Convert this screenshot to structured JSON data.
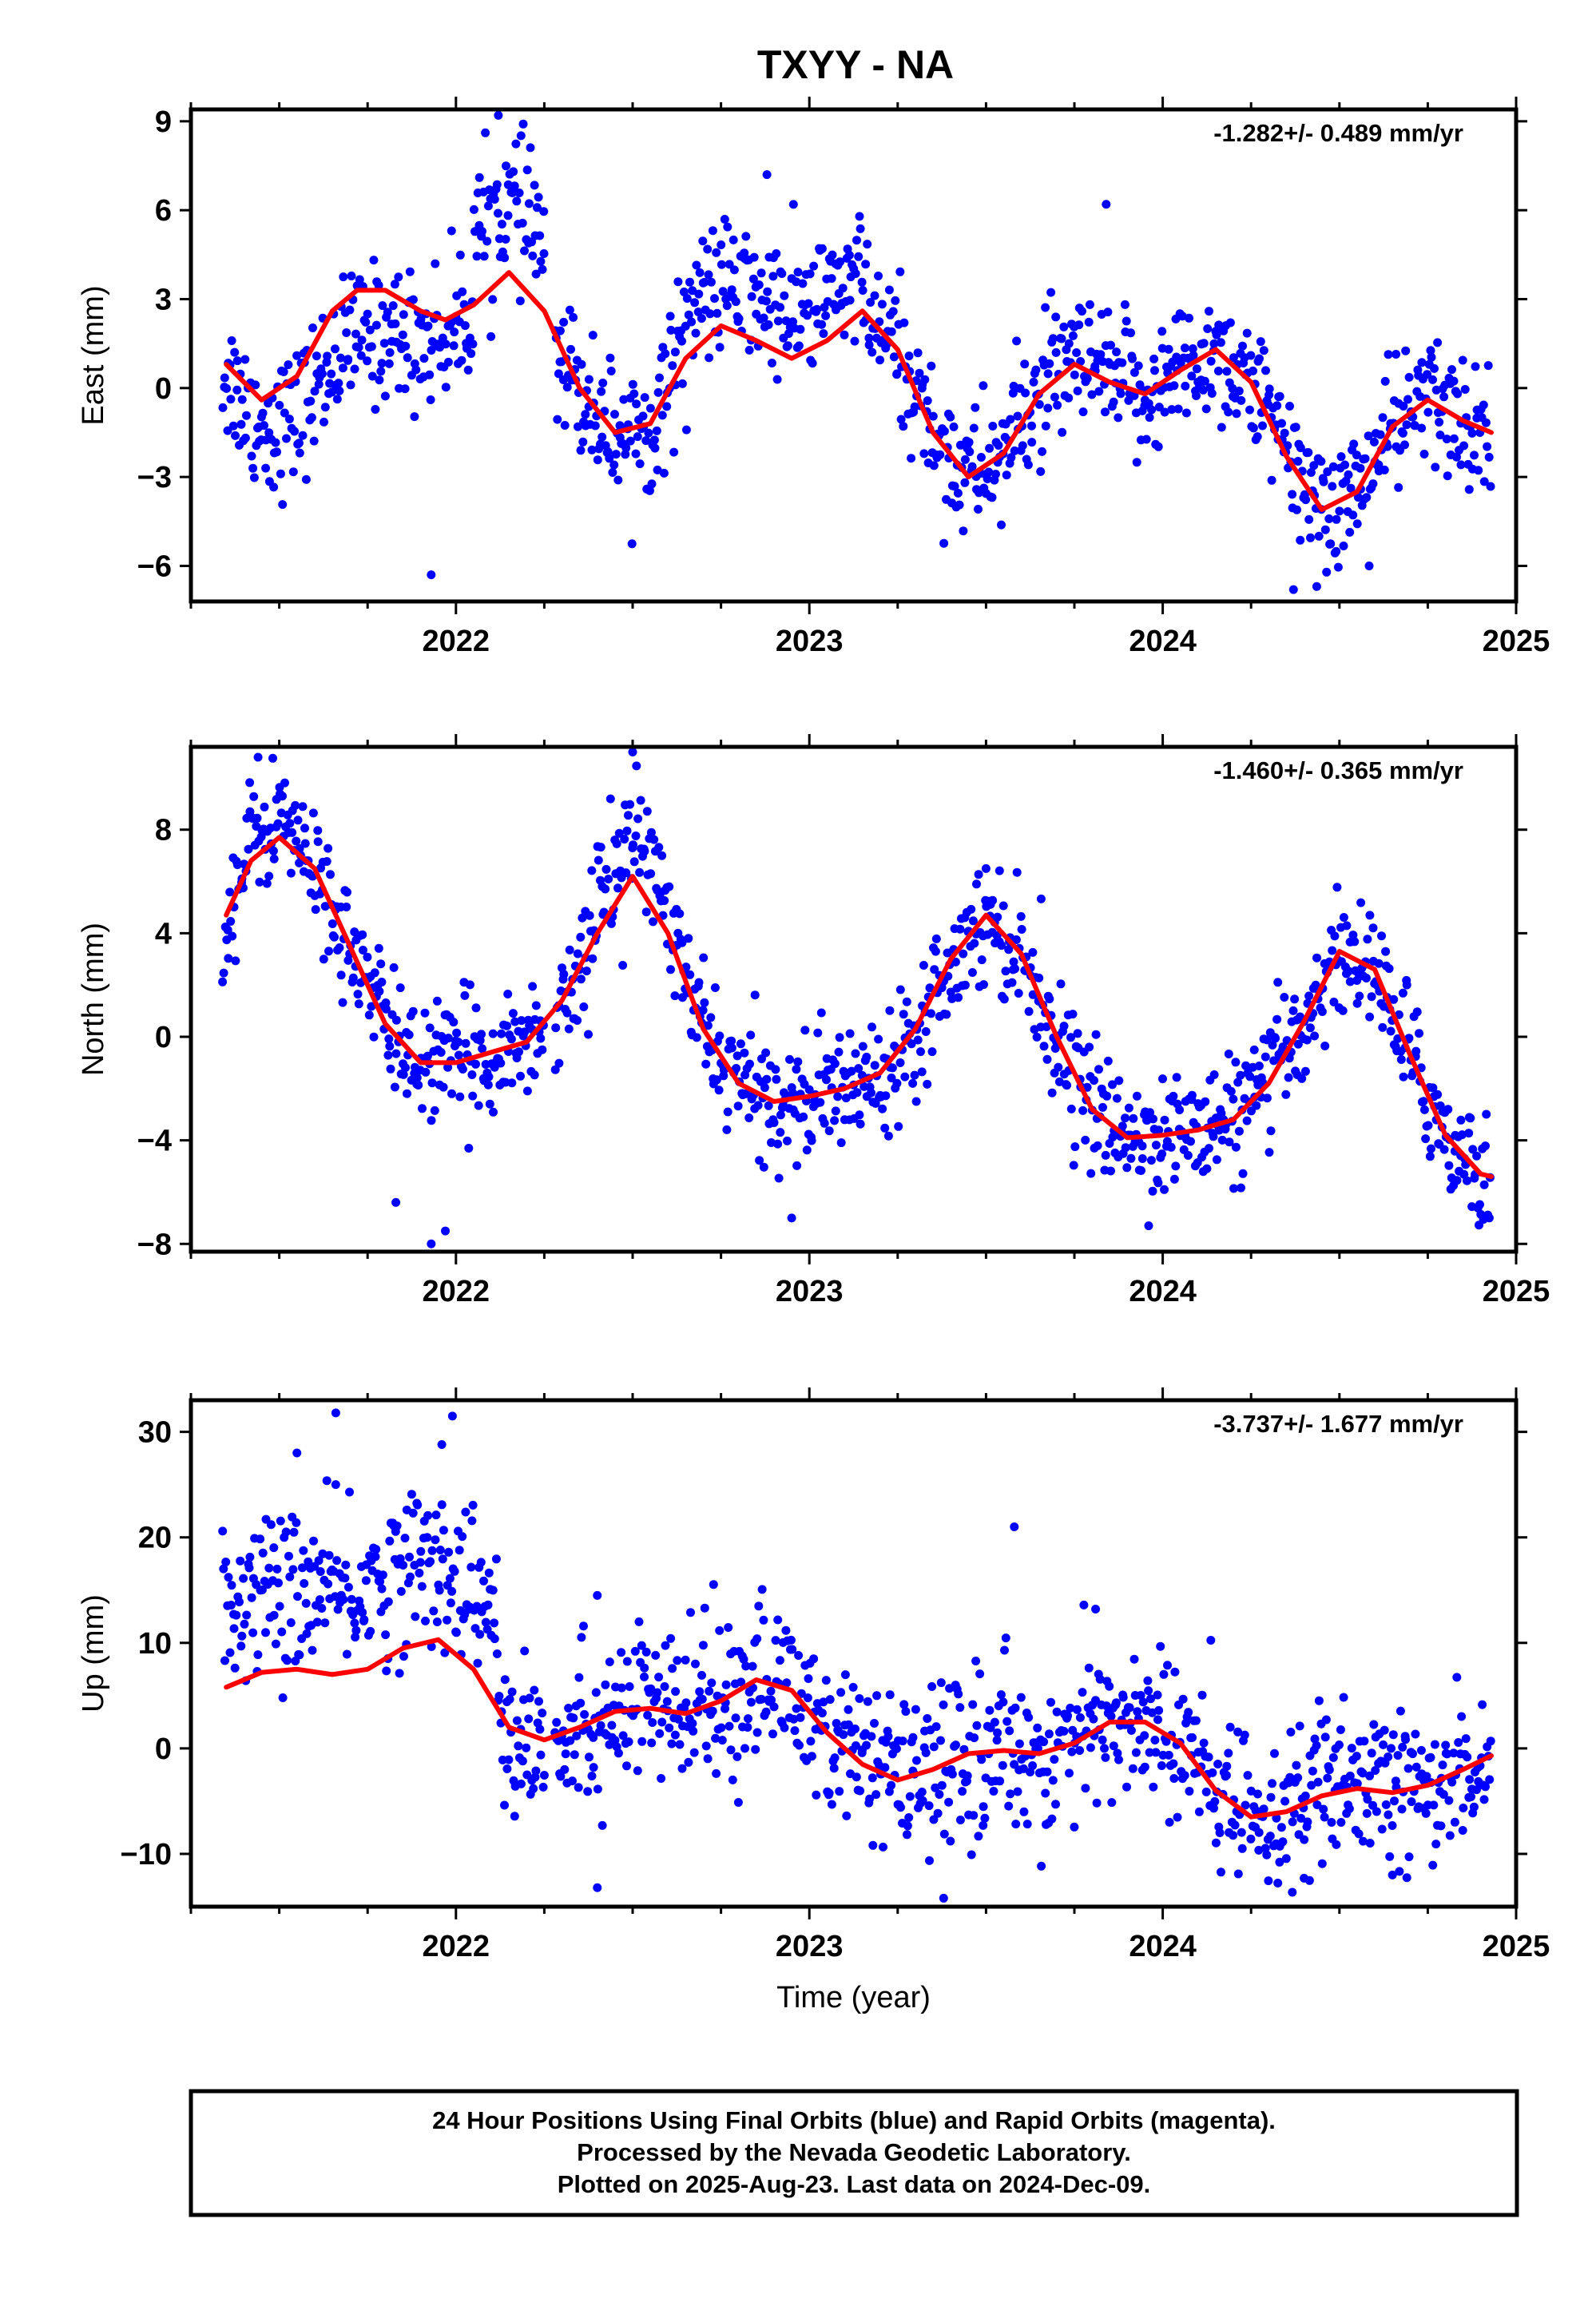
{
  "title": "TXYY - NA",
  "colors": {
    "final_points": "#0000ff",
    "rapid_points": "#ff00ff",
    "trend": "#ff0000",
    "frame": "#000000"
  },
  "chart_data": [
    {
      "type": "scatter",
      "ylabel": "East (mm)",
      "rate": "-1.282+/- 0.489 mm/yr",
      "xlim": [
        2021.25,
        2025.0
      ],
      "ylim": [
        -7.2,
        9.4
      ],
      "yticks": [
        -6,
        -3,
        0,
        3,
        6,
        9
      ],
      "xticks": [
        2022,
        2023,
        2024,
        2025
      ],
      "noise": 1.15,
      "trend": [
        [
          2021.35,
          0.8
        ],
        [
          2021.45,
          -0.4
        ],
        [
          2021.55,
          0.4
        ],
        [
          2021.65,
          2.6
        ],
        [
          2021.72,
          3.3
        ],
        [
          2021.8,
          3.3
        ],
        [
          2021.9,
          2.6
        ],
        [
          2021.97,
          2.3
        ],
        [
          2022.05,
          2.8
        ],
        [
          2022.15,
          3.9
        ],
        [
          2022.25,
          2.6
        ],
        [
          2022.35,
          0.0
        ],
        [
          2022.45,
          -1.5
        ],
        [
          2022.55,
          -1.2
        ],
        [
          2022.65,
          1.0
        ],
        [
          2022.75,
          2.1
        ],
        [
          2022.85,
          1.6
        ],
        [
          2022.95,
          1.0
        ],
        [
          2023.05,
          1.6
        ],
        [
          2023.15,
          2.6
        ],
        [
          2023.25,
          1.3
        ],
        [
          2023.35,
          -1.5
        ],
        [
          2023.45,
          -3.0
        ],
        [
          2023.55,
          -2.2
        ],
        [
          2023.65,
          -0.2
        ],
        [
          2023.75,
          0.8
        ],
        [
          2023.85,
          0.2
        ],
        [
          2023.95,
          -0.2
        ],
        [
          2024.05,
          0.6
        ],
        [
          2024.15,
          1.3
        ],
        [
          2024.25,
          0.2
        ],
        [
          2024.35,
          -2.3
        ],
        [
          2024.45,
          -4.1
        ],
        [
          2024.55,
          -3.5
        ],
        [
          2024.65,
          -1.3
        ],
        [
          2024.75,
          -0.4
        ],
        [
          2024.85,
          -1.1
        ],
        [
          2024.93,
          -1.5
        ]
      ],
      "outliers": [
        [
          2022.12,
          9.2
        ],
        [
          2021.93,
          -6.3
        ],
        [
          2024.37,
          -6.8
        ],
        [
          2023.84,
          6.2
        ],
        [
          2022.88,
          7.2
        ]
      ]
    },
    {
      "type": "scatter",
      "ylabel": "North (mm)",
      "rate": "-1.460+/- 0.365 mm/yr",
      "xlim": [
        2021.25,
        2025.0
      ],
      "ylim": [
        -8.3,
        11.2
      ],
      "yticks": [
        -8,
        -4,
        0,
        4,
        8
      ],
      "xticks": [
        2022,
        2023,
        2024,
        2025
      ],
      "noise": 1.15,
      "trend": [
        [
          2021.35,
          4.7
        ],
        [
          2021.42,
          6.8
        ],
        [
          2021.5,
          7.7
        ],
        [
          2021.6,
          6.5
        ],
        [
          2021.7,
          3.5
        ],
        [
          2021.8,
          0.5
        ],
        [
          2021.9,
          -1.0
        ],
        [
          2022.0,
          -1.0
        ],
        [
          2022.1,
          -0.6
        ],
        [
          2022.2,
          -0.2
        ],
        [
          2022.3,
          1.4
        ],
        [
          2022.4,
          4.0
        ],
        [
          2022.5,
          6.2
        ],
        [
          2022.6,
          4.0
        ],
        [
          2022.7,
          0.3
        ],
        [
          2022.8,
          -1.8
        ],
        [
          2022.9,
          -2.5
        ],
        [
          2023.0,
          -2.3
        ],
        [
          2023.1,
          -2.0
        ],
        [
          2023.2,
          -1.4
        ],
        [
          2023.3,
          0.3
        ],
        [
          2023.4,
          3.0
        ],
        [
          2023.5,
          4.7
        ],
        [
          2023.6,
          3.2
        ],
        [
          2023.7,
          0.0
        ],
        [
          2023.8,
          -2.8
        ],
        [
          2023.9,
          -3.9
        ],
        [
          2024.0,
          -3.8
        ],
        [
          2024.1,
          -3.6
        ],
        [
          2024.2,
          -3.2
        ],
        [
          2024.3,
          -1.8
        ],
        [
          2024.4,
          0.6
        ],
        [
          2024.5,
          3.3
        ],
        [
          2024.6,
          2.6
        ],
        [
          2024.7,
          -0.7
        ],
        [
          2024.8,
          -3.8
        ],
        [
          2024.9,
          -5.3
        ],
        [
          2024.93,
          -5.4
        ]
      ],
      "outliers": [
        [
          2021.93,
          -8.0
        ],
        [
          2021.83,
          -6.4
        ],
        [
          2022.5,
          11.0
        ],
        [
          2023.5,
          6.5
        ],
        [
          2022.95,
          -7.0
        ],
        [
          2021.44,
          10.8
        ],
        [
          2021.97,
          -7.5
        ]
      ]
    },
    {
      "type": "scatter",
      "ylabel": "Up (mm)",
      "xlabel": "Time (year)",
      "rate": "-3.737+/- 1.677 mm/yr",
      "xlim": [
        2021.25,
        2025.0
      ],
      "ylim": [
        -15,
        33
      ],
      "yticks": [
        -10,
        0,
        10,
        20,
        30
      ],
      "xticks": [
        2022,
        2023,
        2024,
        2025
      ],
      "noise": 3.8,
      "trend": [
        [
          2021.35,
          5.8
        ],
        [
          2021.45,
          7.2
        ],
        [
          2021.55,
          7.5
        ],
        [
          2021.65,
          7.0
        ],
        [
          2021.75,
          7.5
        ],
        [
          2021.85,
          9.5
        ],
        [
          2021.95,
          10.3
        ],
        [
          2022.05,
          7.5
        ],
        [
          2022.15,
          2.0
        ],
        [
          2022.25,
          0.8
        ],
        [
          2022.35,
          2.0
        ],
        [
          2022.45,
          3.5
        ],
        [
          2022.55,
          3.8
        ],
        [
          2022.65,
          3.3
        ],
        [
          2022.75,
          4.5
        ],
        [
          2022.85,
          6.5
        ],
        [
          2022.95,
          5.5
        ],
        [
          2023.05,
          1.5
        ],
        [
          2023.15,
          -1.5
        ],
        [
          2023.25,
          -3.0
        ],
        [
          2023.35,
          -2.0
        ],
        [
          2023.45,
          -0.5
        ],
        [
          2023.55,
          -0.2
        ],
        [
          2023.65,
          -0.5
        ],
        [
          2023.75,
          0.5
        ],
        [
          2023.85,
          2.5
        ],
        [
          2023.95,
          2.5
        ],
        [
          2024.05,
          0.5
        ],
        [
          2024.15,
          -4.0
        ],
        [
          2024.25,
          -6.5
        ],
        [
          2024.35,
          -6.0
        ],
        [
          2024.45,
          -4.5
        ],
        [
          2024.55,
          -3.8
        ],
        [
          2024.65,
          -4.2
        ],
        [
          2024.75,
          -3.5
        ],
        [
          2024.85,
          -2.0
        ],
        [
          2024.93,
          -0.7
        ]
      ],
      "outliers": [
        [
          2021.66,
          31.8
        ],
        [
          2021.99,
          31.5
        ],
        [
          2021.96,
          28.8
        ],
        [
          2023.58,
          21.0
        ],
        [
          2023.81,
          13.2
        ],
        [
          2022.4,
          14.5
        ],
        [
          2022.4,
          -13.2
        ],
        [
          2023.38,
          -14.2
        ],
        [
          2024.4,
          -12.3
        ],
        [
          2024.65,
          -12.0
        ],
        [
          2021.55,
          28.0
        ]
      ]
    }
  ],
  "footer": {
    "line1": "24 Hour Positions Using Final Orbits (blue) and Rapid Orbits (magenta).",
    "line2": "Processed by the Nevada Geodetic Laboratory.",
    "line3": "Plotted on 2025-Aug-23. Last data on 2024-Dec-09."
  }
}
